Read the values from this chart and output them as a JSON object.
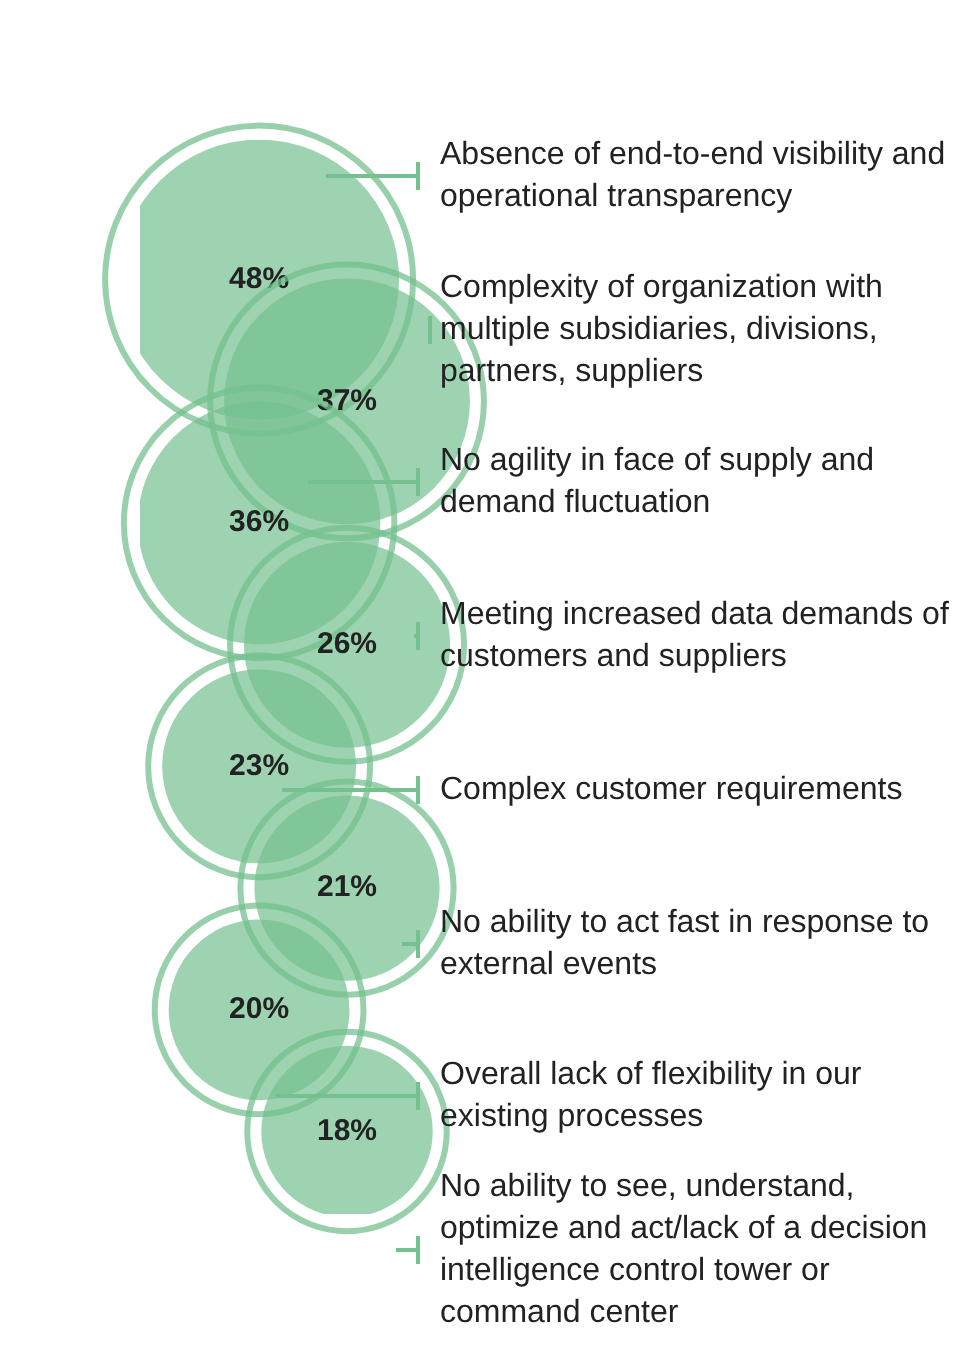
{
  "chart_data": {
    "type": "other",
    "categories": [
      "Absence of end-to-end visibility and operational transparency",
      "Complexity of organization with multiple subsidiaries, divisions, partners, suppliers",
      "No agility in face of supply and demand fluctuation",
      "Meeting increased data demands of customers and suppliers",
      "Complex customer requirements",
      "No ability to act fast in response to external events",
      "Overall lack of flexibility in our existing processes",
      "No ability to see, understand, optimize and act/lack of a decision intelligence control tower or command center"
    ],
    "values": [
      48,
      37,
      36,
      26,
      23,
      21,
      20,
      18
    ],
    "value_labels": [
      "48%",
      "37%",
      "36%",
      "26%",
      "23%",
      "21%",
      "20%",
      "18%"
    ],
    "color": "#74c08e"
  }
}
